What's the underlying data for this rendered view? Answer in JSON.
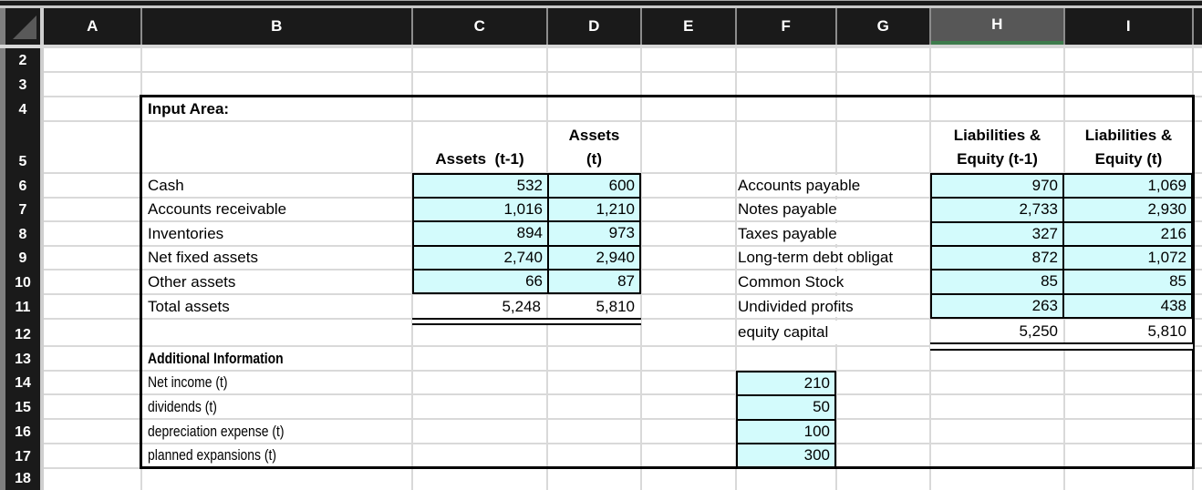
{
  "spreadsheet": {
    "column_headers": [
      "A",
      "B",
      "C",
      "D",
      "E",
      "F",
      "G",
      "H",
      "I"
    ],
    "selected_column": "H",
    "row_headers": [
      "2",
      "3",
      "4",
      "5",
      "6",
      "7",
      "8",
      "9",
      "10",
      "11",
      "12",
      "13",
      "14",
      "15",
      "16",
      "17",
      "18"
    ],
    "colors": {
      "header_bg": "#1a1a1a",
      "selected_header_bg": "#575757",
      "selected_header_underline": "#3e7b4c",
      "input_cell_fill": "#d3fbfc",
      "gridline": "#d9d9d9"
    },
    "input_area": {
      "title": "Input Area:",
      "assets_table": {
        "col1_header": "Assets  (t-1)",
        "col2_header_line1": "Assets",
        "col2_header_line2": "(t)",
        "rows": [
          {
            "label": "Cash",
            "t1": "532",
            "t": "600"
          },
          {
            "label": "Accounts receivable",
            "t1": "1,016",
            "t": "1,210"
          },
          {
            "label": "Inventories",
            "t1": "894",
            "t": "973"
          },
          {
            "label": "Net fixed assets",
            "t1": "2,740",
            "t": "2,940"
          },
          {
            "label": "Other assets",
            "t1": "66",
            "t": "87"
          }
        ],
        "total": {
          "label": "Total assets",
          "t1": "5,248",
          "t": "5,810"
        }
      },
      "liabilities_table": {
        "col1_header_line1": "Liabilities &",
        "col1_header_line2": "Equity (t-1)",
        "col2_header_line1": "Liabilities &",
        "col2_header_line2": "Equity (t)",
        "rows": [
          {
            "label": "Accounts payable",
            "t1": "970",
            "t": "1,069"
          },
          {
            "label": "Notes payable",
            "t1": "2,733",
            "t": "2,930"
          },
          {
            "label": "Taxes payable",
            "t1": "327",
            "t": "216"
          },
          {
            "label": "Long-term debt obligat",
            "t1": "872",
            "t": "1,072"
          },
          {
            "label": "Common Stock",
            "t1": "85",
            "t": "85"
          },
          {
            "label": "Undivided profits",
            "t1": "263",
            "t": "438"
          }
        ],
        "total": {
          "label": "equity capital",
          "t1": "5,250",
          "t": "5,810"
        }
      },
      "additional": {
        "title": "Additional Information",
        "rows": [
          {
            "label": "Net income (t)",
            "value": "210"
          },
          {
            "label": "dividends (t)",
            "value": "50"
          },
          {
            "label": "depreciation expense (t)",
            "value": "100"
          },
          {
            "label": "planned expansions (t)",
            "value": "300"
          }
        ]
      }
    }
  }
}
